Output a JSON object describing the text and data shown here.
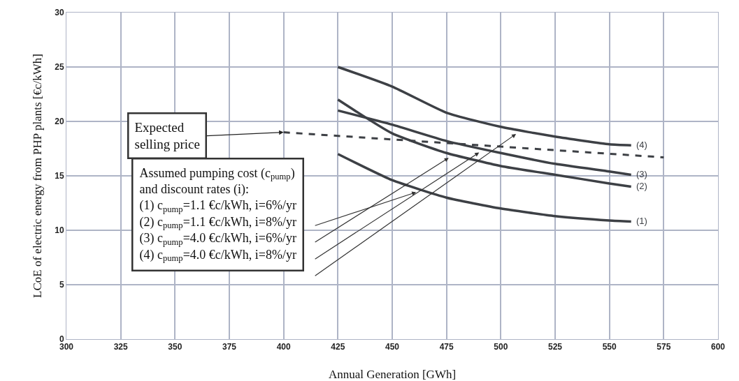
{
  "chart_data": {
    "type": "line",
    "xlabel": "Annual Generation [GWh]",
    "ylabel": "LCoE of electric energy from PHP plants [€c/kWh]",
    "xlim": [
      300,
      600
    ],
    "xticks": [
      300,
      325,
      350,
      375,
      400,
      425,
      450,
      475,
      500,
      525,
      550,
      575,
      600
    ],
    "ylim": [
      0,
      30
    ],
    "yticks": [
      0,
      5,
      10,
      15,
      20,
      25,
      30
    ],
    "grid": true,
    "legend": false,
    "line_style": "solid",
    "series": [
      {
        "name": "(1)",
        "color": "#3d4045",
        "x": [
          425,
          450,
          475,
          500,
          525,
          550,
          560
        ],
        "values": [
          17.0,
          14.6,
          13.0,
          12.0,
          11.3,
          10.9,
          10.8
        ]
      },
      {
        "name": "(2)",
        "color": "#3d4045",
        "x": [
          425,
          450,
          475,
          500,
          525,
          550,
          560
        ],
        "values": [
          22.0,
          18.9,
          17.1,
          15.9,
          15.1,
          14.3,
          14.0
        ]
      },
      {
        "name": "(3)",
        "color": "#3d4045",
        "x": [
          425,
          450,
          475,
          500,
          525,
          550,
          560
        ],
        "values": [
          21.0,
          19.7,
          18.2,
          17.1,
          16.1,
          15.4,
          15.1
        ]
      },
      {
        "name": "(4)",
        "color": "#3d4045",
        "x": [
          425,
          450,
          475,
          500,
          525,
          550,
          560
        ],
        "values": [
          25.0,
          23.2,
          20.8,
          19.5,
          18.6,
          17.9,
          17.8
        ]
      },
      {
        "color": "#3d4045",
        "line_style": "dashed",
        "x": [
          400,
          575
        ],
        "values": [
          19.0,
          16.7
        ]
      }
    ],
    "annotations": [
      {
        "text": "Expected\nselling price",
        "x": 400,
        "y": 19.0
      },
      "Assumed pumping cost (c$_{pump}$)\nand discount rates (i):\n(1) c$_{pump}$=1.1 €c/kWh, i=6%/yr\n(2) c$_{pump}$=1.1 €c/kWh, i=8%/yr\n(3) c$_{pump}$=4.0 €c/kWh, i=6%/yr\n(4) c$_{pump}$=4.0 €c/kWh, i=8%/yr"
    ]
  }
}
